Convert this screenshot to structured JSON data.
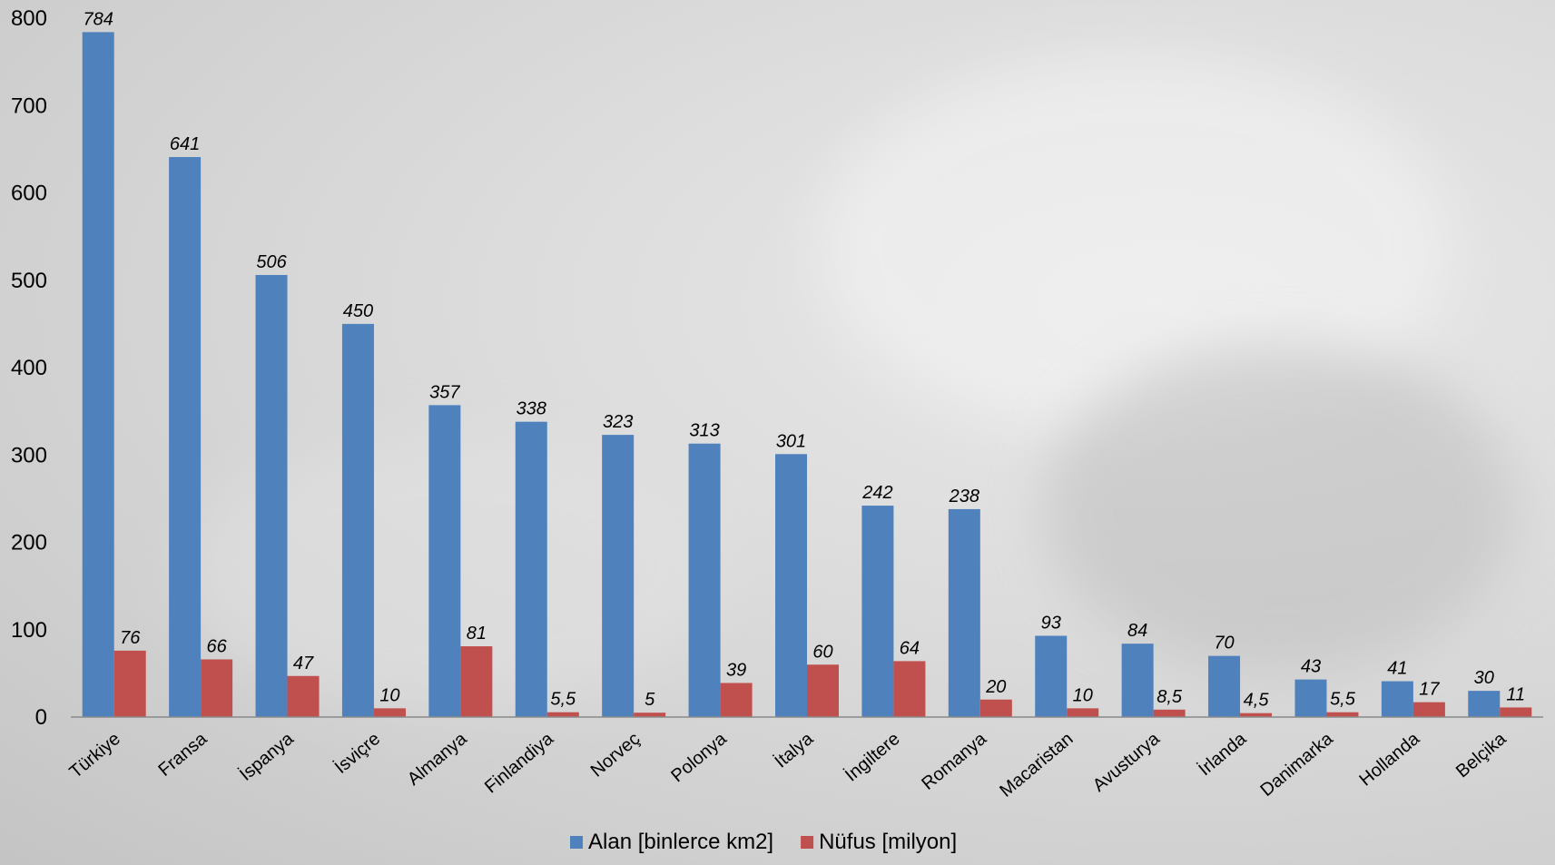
{
  "chart_data": {
    "type": "bar",
    "title": "",
    "xlabel": "",
    "ylabel": "",
    "ylim": [
      0,
      800
    ],
    "yticks": [
      0,
      100,
      200,
      300,
      400,
      500,
      600,
      700,
      800
    ],
    "grid": false,
    "legend_position": "bottom",
    "categories": [
      "Türkiye",
      "Fransa",
      "İspanya",
      "İsviçre",
      "Almanya",
      "Finlandiya",
      "Norveç",
      "Polonya",
      "İtalya",
      "İngiltere",
      "Romanya",
      "Macaristan",
      "Avusturya",
      "İrlanda",
      "Danimarka",
      "Hollanda",
      "Belçika"
    ],
    "series": [
      {
        "name": "Alan [binlerce km2]",
        "color": "#4f81bd",
        "values": [
          784,
          641,
          506,
          450,
          357,
          338,
          323,
          313,
          301,
          242,
          238,
          93,
          84,
          70,
          43,
          41,
          30
        ],
        "labels": [
          "784",
          "641",
          "506",
          "450",
          "357",
          "338",
          "323",
          "313",
          "301",
          "242",
          "238",
          "93",
          "84",
          "70",
          "43",
          "41",
          "30"
        ]
      },
      {
        "name": "Nüfus [milyon]",
        "color": "#c0504d",
        "values": [
          76,
          66,
          47,
          10,
          81,
          5.5,
          5,
          39,
          60,
          64,
          20,
          10,
          8.5,
          4.5,
          5.5,
          17,
          11
        ],
        "labels": [
          "76",
          "66",
          "47",
          "10",
          "81",
          "5,5",
          "5",
          "39",
          "60",
          "64",
          "20",
          "10",
          "8,5",
          "4,5",
          "5,5",
          "17",
          "11"
        ]
      }
    ]
  }
}
